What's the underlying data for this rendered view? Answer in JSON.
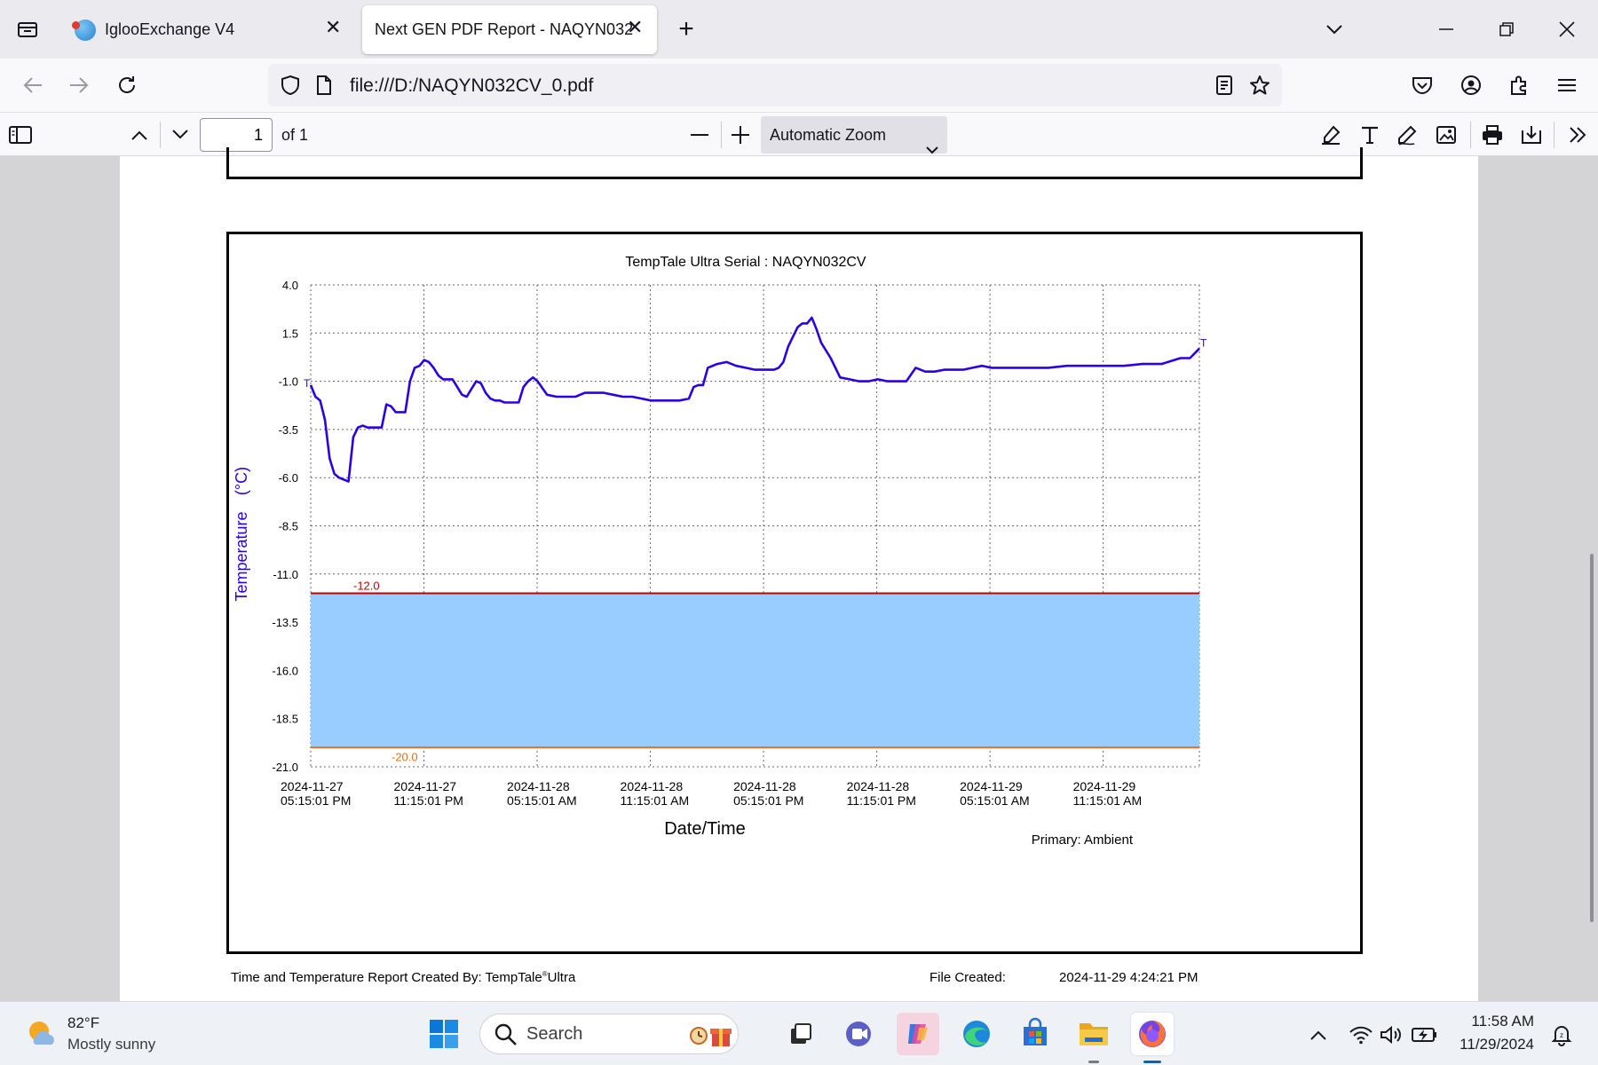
{
  "tabs": [
    {
      "label": "IglooExchange V4",
      "active": false
    },
    {
      "label": "Next GEN PDF Report - NAQYN032",
      "active": true
    }
  ],
  "address": {
    "url": "file:///D:/NAQYN032CV_0.pdf"
  },
  "pdf_toolbar": {
    "page_number": "1",
    "page_count_label": "of 1",
    "zoom_label": "Automatic Zoom"
  },
  "report": {
    "footer_created_by": "Time and Temperature Report Created By:  TempTale",
    "footer_created_by_super": "®",
    "footer_created_by_tail": "Ultra",
    "footer_file_created_label": "File Created:",
    "footer_file_created_value": "2024-11-29  4:24:21 PM"
  },
  "chart_data": {
    "type": "line",
    "title": "TempTale Ultra  Serial : NAQYN032CV",
    "ylabel": "Temperature",
    "ylabel_unit": "(°C)",
    "xlabel": "Date/Time",
    "primary_label": "Primary: Ambient",
    "ylim": [
      -21.0,
      4.0
    ],
    "yticks": [
      "4.0",
      "1.5",
      "-1.0",
      "-3.5",
      "-6.0",
      "-8.5",
      "-11.0",
      "-13.5",
      "-16.0",
      "-18.5",
      "-21.0"
    ],
    "xtick_labels": [
      [
        "2024-11-27",
        "05:15:01 PM"
      ],
      [
        "2024-11-27",
        "11:15:01 PM"
      ],
      [
        "2024-11-28",
        "05:15:01 AM"
      ],
      [
        "2024-11-28",
        "11:15:01 AM"
      ],
      [
        "2024-11-28",
        "05:15:01 PM"
      ],
      [
        "2024-11-28",
        "11:15:01 PM"
      ],
      [
        "2024-11-29",
        "05:15:01 AM"
      ],
      [
        "2024-11-29",
        "11:15:01 AM"
      ]
    ],
    "x_hours_range": [
      0,
      47
    ],
    "upper_limit": {
      "label": "-12.0",
      "value": -12.0,
      "color": "#c00000"
    },
    "lower_limit": {
      "label": "-20.0",
      "value": -20.0,
      "color": "#e07020"
    },
    "band_color": "#99ccff",
    "line_color": "#2a00e6",
    "start_marker": "T",
    "end_marker": "T",
    "series": [
      {
        "x": [
          0,
          0.25,
          0.5,
          0.75,
          1.0,
          1.25,
          1.5,
          1.75,
          2.0,
          2.25,
          2.5,
          2.75,
          3.0,
          3.25,
          3.5,
          3.75,
          4.0,
          4.25,
          4.5,
          4.75,
          5.0,
          5.25,
          5.5,
          5.75,
          6.0,
          6.25,
          6.5,
          6.75,
          7.0,
          7.25,
          7.5,
          7.75,
          8.0,
          8.25,
          8.5,
          8.75,
          9.0,
          9.25,
          9.5,
          9.75,
          10.0,
          10.25,
          10.5,
          10.75,
          11.0,
          11.25,
          11.5,
          11.75,
          12.0,
          12.5,
          13.0,
          13.5,
          14.0,
          14.5,
          15.0,
          15.5,
          16.0,
          16.5,
          17.0,
          17.5,
          18.0,
          18.5,
          19.0,
          19.5,
          20.0,
          20.25,
          20.5,
          20.75,
          21.0,
          21.5,
          22.0,
          22.5,
          23.0,
          23.5,
          24.0,
          24.25,
          24.5,
          24.75,
          25.0,
          25.25,
          25.5,
          25.75,
          26.0,
          26.25,
          26.5,
          26.75,
          27.0,
          27.5,
          28.0,
          28.5,
          29.0,
          29.5,
          30.0,
          30.5,
          31.0,
          31.5,
          32.0,
          32.5,
          33.0,
          33.5,
          34.0,
          34.5,
          35.0,
          35.5,
          36.0,
          37.0,
          38.0,
          39.0,
          40.0,
          41.0,
          42.0,
          43.0,
          44.0,
          45.0,
          46.0,
          46.5,
          47.0
        ],
        "y": [
          -1.2,
          -1.8,
          -2.0,
          -3.0,
          -5.0,
          -5.8,
          -6.0,
          -6.1,
          -6.2,
          -3.9,
          -3.4,
          -3.3,
          -3.4,
          -3.4,
          -3.4,
          -3.4,
          -2.2,
          -2.3,
          -2.6,
          -2.6,
          -2.6,
          -1.0,
          -0.3,
          -0.2,
          0.1,
          0.0,
          -0.3,
          -0.7,
          -0.9,
          -0.9,
          -0.9,
          -1.3,
          -1.7,
          -1.8,
          -1.4,
          -1.0,
          -1.1,
          -1.6,
          -1.9,
          -2.0,
          -2.0,
          -2.1,
          -2.1,
          -2.1,
          -2.1,
          -1.3,
          -1.0,
          -0.8,
          -1.0,
          -1.7,
          -1.8,
          -1.8,
          -1.8,
          -1.6,
          -1.6,
          -1.6,
          -1.7,
          -1.8,
          -1.8,
          -1.9,
          -2.0,
          -2.0,
          -2.0,
          -2.0,
          -1.9,
          -1.3,
          -1.2,
          -1.2,
          -0.3,
          -0.1,
          0.0,
          -0.2,
          -0.3,
          -0.4,
          -0.4,
          -0.4,
          -0.4,
          -0.3,
          0.0,
          0.8,
          1.3,
          1.8,
          2.0,
          2.0,
          2.3,
          1.7,
          1.0,
          0.2,
          -0.8,
          -0.9,
          -1.0,
          -1.0,
          -0.9,
          -1.0,
          -1.0,
          -1.0,
          -0.3,
          -0.5,
          -0.5,
          -0.4,
          -0.4,
          -0.4,
          -0.3,
          -0.2,
          -0.3,
          -0.3,
          -0.3,
          -0.3,
          -0.2,
          -0.2,
          -0.2,
          -0.2,
          -0.1,
          -0.1,
          0.2,
          0.2,
          0.7
        ]
      }
    ]
  },
  "taskbar": {
    "weather_temp": "82°F",
    "weather_desc": "Mostly sunny",
    "search_placeholder": "Search",
    "time": "11:58 AM",
    "date": "11/29/2024"
  }
}
